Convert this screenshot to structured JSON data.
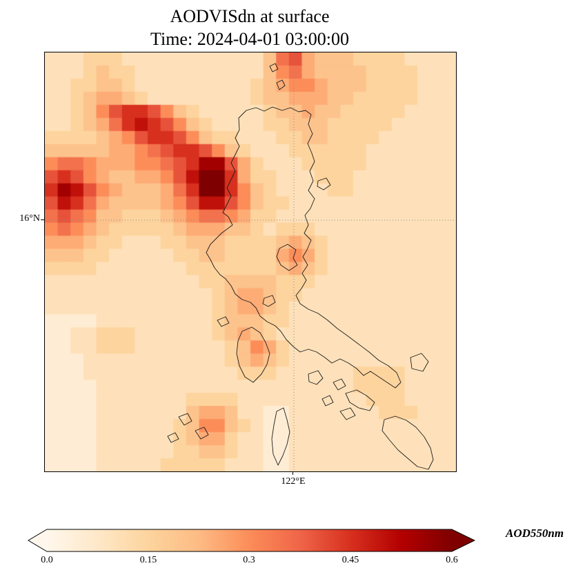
{
  "title": {
    "line1": "AODVISdn at surface",
    "line2": "Time: 2024-04-01 03:00:00"
  },
  "axes": {
    "lat_label": "16°N",
    "lon_label": "122°E"
  },
  "colorbar": {
    "label": "AOD550nm",
    "ticks": [
      "0.0",
      "0.15",
      "0.3",
      "0.45",
      "0.6"
    ]
  },
  "chart_data": {
    "type": "heatmap",
    "title": "AODVISdn at surface",
    "subtitle": "Time: 2024-04-01 03:00:00",
    "variable": "AOD550nm",
    "vmin": 0,
    "vmax": 0.6,
    "colorbar_ticks": [
      0.0,
      0.15,
      0.3,
      0.45,
      0.6
    ],
    "colorbar_extend": "both",
    "gridline_labels": {
      "lat": "16°N",
      "lon": "122°E"
    },
    "grid_rows": 32,
    "grid_cols": 32,
    "cell_encoding": "each character is a hex digit; AOD value = digit * 0.05 (0='0.00' ... d='0.65')",
    "rows": [
      "22233322222222222478544433332222",
      "22234332222222222467544443333222",
      "22334432222222223456654443333222",
      "22345543222222223445554433333222",
      "22346899864322222344544333332222",
      "2234579a986432222334443333322222",
      "33334568998643322233443333222222",
      "44444556789986432223333332222222",
      "677655566789bb853222333332222222",
      "89865445568adc953322233322222222",
      "9ba865444579cd964322223322222222",
      "8a9754444568aa864332222222222222",
      "78764433345677653322222222222222",
      "67654333334555443233322222222222",
      "55543322233444333345432222222222",
      "44433222223344333356532222222222",
      "33332222222333333345432222222222",
      "22222222222233444433322222222222",
      "22222222222223455433222222222222",
      "22222222222223455432222222222222",
      "11112222222223444332222222222222",
      "11223332222223454322222222222222",
      "11223332222222346532222222222222",
      "11122222222222345432222222222222",
      "11122222222222233322222233332222",
      "11112222222222222222222233332222",
      "11112222222333322222222223332222",
      "11112222222455422112222222333222",
      "11112222223466432112222222222222",
      "11112222223455322112222222222222",
      "11112222223344322112222222222222",
      "11112222233333222112222222222222"
    ],
    "colormap": {
      "name": "OrRd",
      "stops": [
        "#fff7ec",
        "#fee8c8",
        "#fdd49e",
        "#fdbb84",
        "#fc8d59",
        "#ef6548",
        "#d7301f",
        "#b30000",
        "#7f0000"
      ]
    }
  },
  "coastlines": [
    "M 281,95 L 292,84 L 306,80 L 318,85 L 330,79 L 344,84 L 356,80 L 368,86 L 378,84 L 386,90 L 382,104 L 388,118 L 381,132 L 387,146 L 391,158 L 384,172 L 389,186 L 382,200 L 391,212 L 385,226 L 377,236 L 382,250 L 376,262 L 386,272 L 380,286 L 374,296 L 381,308 L 373,320 L 379,330 L 372,342 L 364,352 L 370,364 L 382,372 L 396,378 L 410,388 L 424,400 L 438,410 L 454,422 L 470,434 L 484,446 L 498,454 L 510,464 L 516,478 L 508,486 L 496,478 L 484,470 L 472,462 L 462,468 L 452,458 L 440,450 L 428,444 L 416,450 L 406,442 L 394,434 L 382,430 L 370,434 L 360,426 L 350,416 L 342,404 L 334,396 L 322,390 L 312,382 L 306,370 L 298,362 L 286,358 L 276,350 L 270,338 L 262,328 L 254,322 L 246,312 L 240,300 L 234,290 L 240,278 L 248,270 L 256,262 L 264,256 L 272,250 L 266,238 L 258,232 L 264,220 L 270,208 L 264,196 L 270,184 L 276,172 L 270,160 L 276,148 L 282,136 L 276,124 L 282,112 Z",
    "M 340,284 L 352,278 L 364,286 L 360,298 L 366,308 L 354,316 L 342,308 L 336,296 Z",
    "M 318,356 L 330,352 L 334,362 L 324,368 L 316,364 Z",
    "M 326,20 L 334,16 L 338,24 L 330,28 Z",
    "M 336,44 L 344,40 L 348,48 L 340,54 Z",
    "M 396,186 L 408,182 L 414,192 L 404,199 L 395,194 Z",
    "M 530,442 L 546,436 L 556,448 L 548,462 L 532,458 Z",
    "M 382,466 L 396,461 L 403,472 L 394,481 L 383,477 Z",
    "M 286,404 L 300,398 L 312,406 L 320,420 L 326,436 L 322,452 L 314,466 L 302,478 L 290,470 L 282,454 L 278,436 L 280,418 Z",
    "M 250,388 L 262,383 L 267,392 L 256,397 Z",
    "M 418,478 L 430,473 L 436,483 L 425,489 Z",
    "M 436,494 L 452,489 L 466,497 L 478,507 L 471,519 L 455,515 L 442,507 Z",
    "M 402,502 L 413,497 L 418,507 L 407,512 Z",
    "M 428,520 L 443,515 L 450,526 L 437,532 Z",
    "M 336,520 L 346,515 L 351,532 L 355,550 L 351,568 L 345,584 L 338,598 L 331,582 L 329,560 L 332,540 Z",
    "M 492,532 L 508,527 L 524,533 L 538,543 L 550,557 L 559,573 L 563,590 L 556,604 L 540,600 L 526,588 L 512,576 L 500,562 L 489,548 Z",
    "M 194,528 L 207,523 L 213,534 L 202,540 Z",
    "M 218,548 L 231,543 L 237,554 L 226,560 Z",
    "M 178,556 L 189,551 L 194,560 L 183,565 Z"
  ]
}
